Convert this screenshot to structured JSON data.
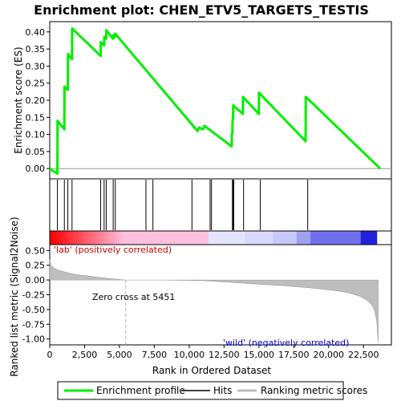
{
  "chart_data": {
    "type": "line",
    "title": "Enrichment plot: CHEN_ETV5_TARGETS_TESTIS",
    "top_panel": {
      "ylabel": "Enrichment score (ES)",
      "ylim": [
        -0.03,
        0.43
      ],
      "yticks": [
        0.0,
        0.05,
        0.1,
        0.15,
        0.2,
        0.25,
        0.3,
        0.35,
        0.4
      ],
      "ytick_labels": [
        "0.00",
        "0.05",
        "0.10",
        "0.15",
        "0.20",
        "0.25",
        "0.30",
        "0.35",
        "0.40"
      ],
      "series": [
        {
          "name": "Enrichment profile",
          "color": "#00ee00",
          "x": [
            0,
            550,
            560,
            1050,
            1060,
            1300,
            1310,
            1600,
            1610,
            3650,
            3660,
            3900,
            3910,
            4050,
            4060,
            4550,
            4560,
            4680,
            4690,
            10600,
            10700,
            11000,
            11100,
            13050,
            13060,
            13100,
            13110,
            13150,
            13160,
            13850,
            13860,
            15000,
            15010,
            18350,
            18360,
            23700
          ],
          "y": [
            0.0,
            -0.015,
            0.14,
            0.115,
            0.24,
            0.23,
            0.335,
            0.32,
            0.41,
            0.33,
            0.37,
            0.36,
            0.385,
            0.38,
            0.405,
            0.38,
            0.39,
            0.385,
            0.395,
            0.11,
            0.12,
            0.115,
            0.125,
            0.065,
            0.1,
            0.105,
            0.14,
            0.15,
            0.185,
            0.16,
            0.21,
            0.16,
            0.222,
            0.08,
            0.21,
            0.0
          ]
        }
      ]
    },
    "hits": [
      550,
      1050,
      1300,
      1600,
      3650,
      3900,
      4050,
      4550,
      4700,
      6900,
      7400,
      10200,
      11500,
      11600,
      13100,
      13150,
      13200,
      13900,
      15100,
      18500
    ],
    "bottom_panel": {
      "ylabel": "Ranked list metric (Signal2Noise)",
      "xlabel": "Rank in Ordered Dataset",
      "ylim": [
        -1.1,
        0.6
      ],
      "yticks": [
        0.5,
        0.25,
        0.0,
        -0.25,
        -0.5,
        -0.75,
        -1.0
      ],
      "ytick_labels": [
        "0.50",
        "0.25",
        "0.00",
        "-0.25",
        "-0.50",
        "-0.75",
        "-1.00"
      ],
      "xlim": [
        0,
        24500
      ],
      "xticks": [
        0,
        2500,
        5000,
        7500,
        10000,
        12500,
        15000,
        17500,
        20000,
        22500
      ],
      "xtick_labels": [
        "0",
        "2,500",
        "5,000",
        "7,500",
        "10,000",
        "12,500",
        "15,000",
        "17,500",
        "20,000",
        "22,500"
      ],
      "metric": {
        "x": [
          0,
          100,
          300,
          600,
          1000,
          1500,
          2000,
          3000,
          4000,
          5000,
          5451,
          8000,
          11000,
          13000,
          15000,
          17000,
          19000,
          20500,
          21500,
          22300,
          22800,
          23100,
          23300,
          23450,
          23550
        ],
        "y": [
          0.35,
          0.25,
          0.2,
          0.17,
          0.14,
          0.11,
          0.09,
          0.06,
          0.03,
          0.01,
          0.0,
          0.0,
          -0.01,
          -0.04,
          -0.07,
          -0.1,
          -0.14,
          -0.18,
          -0.22,
          -0.28,
          -0.35,
          -0.42,
          -0.52,
          -0.7,
          -1.05
        ]
      },
      "annotations": {
        "pos_label": "'lab' (positively correlated)",
        "neg_label": "'wild' (negatively correlated)",
        "zero_cross": "Zero cross at 5451",
        "zero_cross_x": 5451
      }
    },
    "legend": {
      "placement": "bottom",
      "items": [
        "Enrichment profile",
        "Hits",
        "Ranking metric scores"
      ]
    }
  },
  "colors": {
    "profile": "#00ee00",
    "hits": "#000000",
    "metric": "#bebebe",
    "pos_text": "#cc0000",
    "neg_text": "#0000cc",
    "bar_red": "#ff0000",
    "bar_pink": "#ffc0e0",
    "bar_lavender": "#d8d8ff",
    "bar_blue": "#4040ff"
  }
}
